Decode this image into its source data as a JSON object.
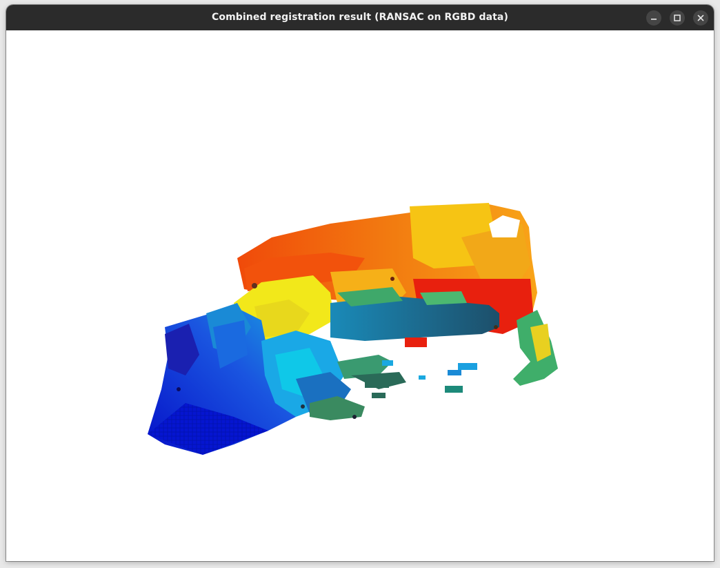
{
  "window": {
    "title": "Combined registration result (RANSAC on RGBD data)",
    "buttons": {
      "minimize": "minimize-icon",
      "maximize": "maximize-icon",
      "close": "close-icon"
    }
  },
  "viewport": {
    "background": "#ffffff",
    "content": "point-cloud",
    "colormap": [
      "#0a14c8",
      "#1e50e6",
      "#1e9be6",
      "#1f6f86",
      "#3fae6a",
      "#f2e41a",
      "#f8a21a",
      "#f25c10",
      "#e81c10"
    ]
  },
  "colors": {
    "titlebar": "#2b2b2b",
    "title_text": "#f2f2f2",
    "button_bg": "#454545"
  }
}
